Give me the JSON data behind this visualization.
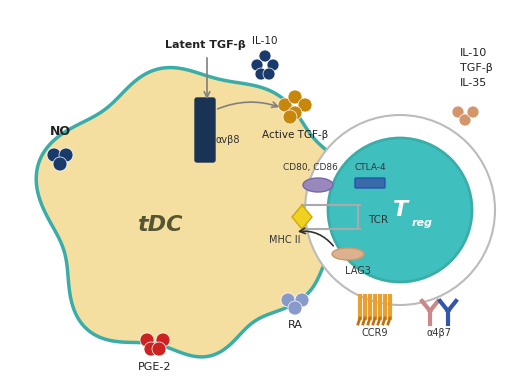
{
  "bg_color": "#ffffff",
  "tdc_fill": "#f5dfa0",
  "tdc_stroke": "#3aada8",
  "treg_outer_fill": "#ffffff",
  "treg_outer_stroke": "#aaaaaa",
  "treg_inner_fill": "#40bfbf",
  "treg_inner_stroke": "#3aada8",
  "no_color": "#1a3a6b",
  "active_tgf_color": "#c8860a",
  "il10_color": "#1a3a6b",
  "il10_treg_color": "#d4956a",
  "pge2_color": "#cc2222",
  "ra_color": "#8899cc",
  "alphav_color": "#1a3355",
  "mhcii_color": "#f0d020",
  "ctla4_color": "#3a6aaa",
  "cd80cd86_color": "#9988bb",
  "lag3_color": "#ddb090",
  "ccr9_color": "#e8a030",
  "alpha4b7_color_1": "#cc8888",
  "alpha4b7_color_2": "#3355aa",
  "labels": {
    "tdc": "tDC",
    "treg": "T",
    "treg_sub": "reg",
    "no": "NO",
    "latent_tgf": "Latent TGF-β",
    "active_tgf": "Active TGF-β",
    "il10_top": "IL-10",
    "il10_treg": "IL-10\nTGF-β\nIL-35",
    "pge2": "PGE-2",
    "ra": "RA",
    "alphav": "αvβ8",
    "mhcii": "MHC II",
    "tcr": "TCR",
    "ctla4": "CTLA-4",
    "cd80cd86": "CD80, CD86",
    "lag3": "LAG3",
    "ccr9": "CCR9",
    "alpha4b7": "α4β7"
  }
}
